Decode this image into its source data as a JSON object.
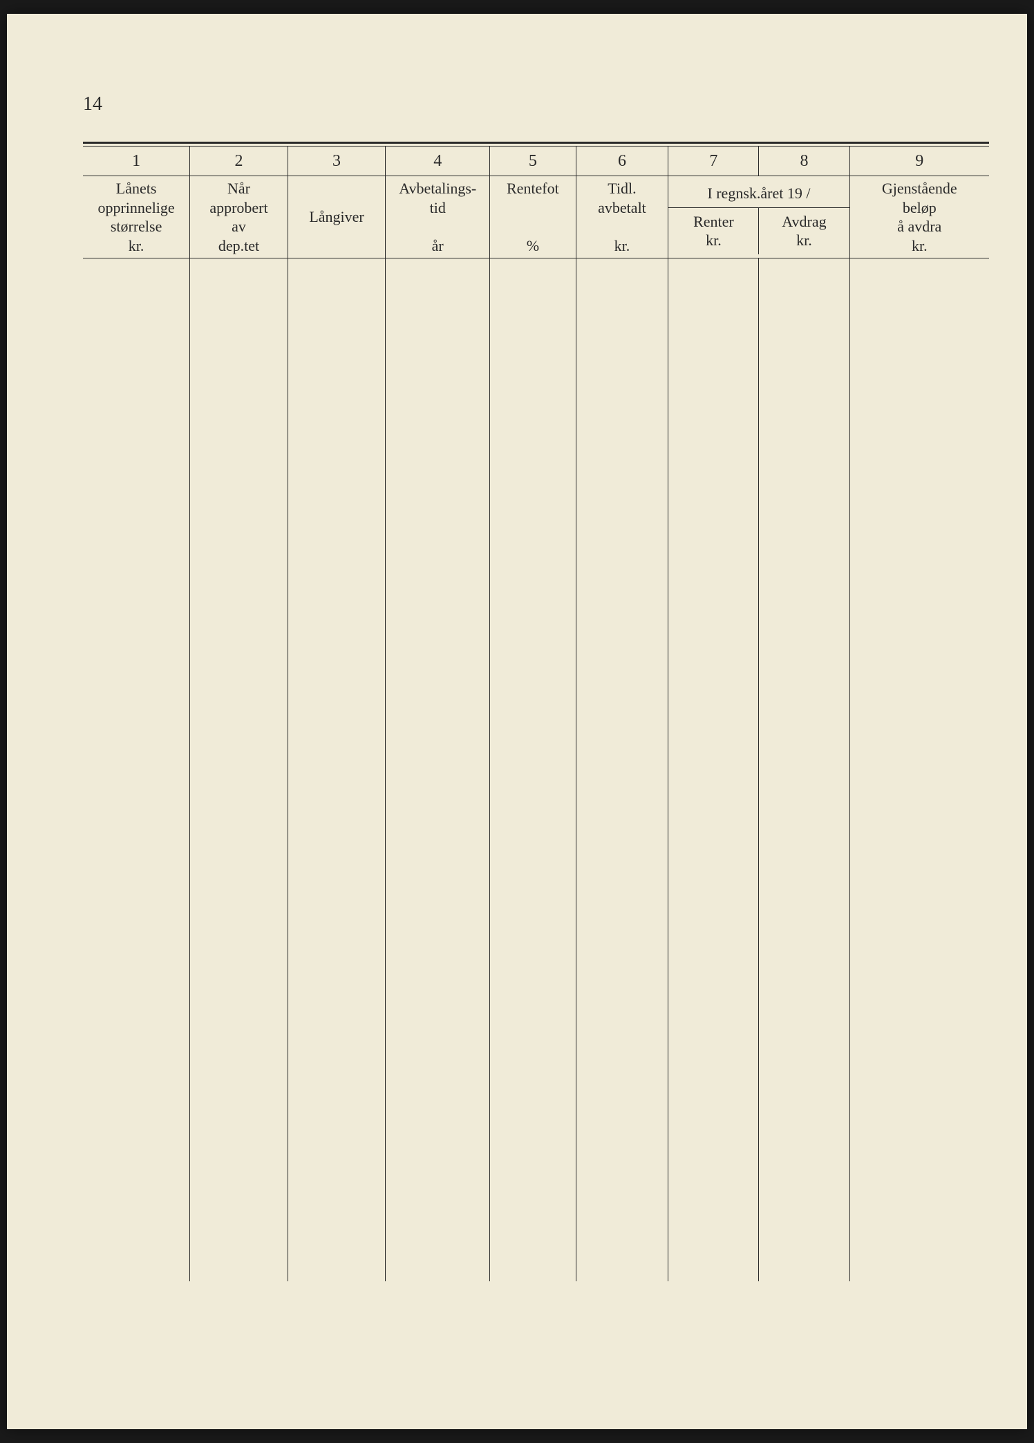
{
  "page_number": "14",
  "table": {
    "type": "table",
    "background_color": "#f0ebd8",
    "text_color": "#2a2a2a",
    "rule_color": "#2a2a2a",
    "font_family": "Georgia, Times New Roman, serif",
    "header_fontsize": 22,
    "number_fontsize": 24,
    "column_numbers": [
      "1",
      "2",
      "3",
      "4",
      "5",
      "6",
      "7",
      "8",
      "9"
    ],
    "spanning_header": "I regnsk.året 19    /",
    "columns": [
      {
        "num": "1",
        "label": "Lånets opprinnelige størrelse kr.",
        "width_pct": 11.8
      },
      {
        "num": "2",
        "label": "Når approbert av dep.tet",
        "width_pct": 10.8
      },
      {
        "num": "3",
        "label": "Långiver",
        "width_pct": 10.8
      },
      {
        "num": "4",
        "label": "Avbetalings- tid år",
        "width_pct": 11.5
      },
      {
        "num": "5",
        "label": "Rentefot %",
        "width_pct": 9.5
      },
      {
        "num": "6",
        "label": "Tidl. avbetalt kr.",
        "width_pct": 10.2
      },
      {
        "num": "7",
        "label": "Renter kr.",
        "width_pct": 10.0
      },
      {
        "num": "8",
        "label": "Avdrag kr.",
        "width_pct": 10.0
      },
      {
        "num": "9",
        "label": "Gjenstående beløp å avdra kr.",
        "width_pct": 15.4
      }
    ],
    "col1_lines": [
      "Lånets",
      "opprinnelige",
      "størrelse",
      "kr."
    ],
    "col2_lines": [
      "Når",
      "approbert",
      "av",
      "dep.tet"
    ],
    "col3_lines": [
      "Långiver"
    ],
    "col4_lines": [
      "Avbetalings-",
      "tid",
      "",
      "år"
    ],
    "col5_lines": [
      "Rentefot",
      "",
      "",
      "%"
    ],
    "col6_lines": [
      "Tidl.",
      "avbetalt",
      "",
      "kr."
    ],
    "col7_lines": [
      "Renter",
      "kr."
    ],
    "col8_lines": [
      "Avdrag",
      "kr."
    ],
    "col9_lines": [
      "Gjenstående",
      "beløp",
      "å avdra",
      "kr."
    ],
    "rows": []
  }
}
